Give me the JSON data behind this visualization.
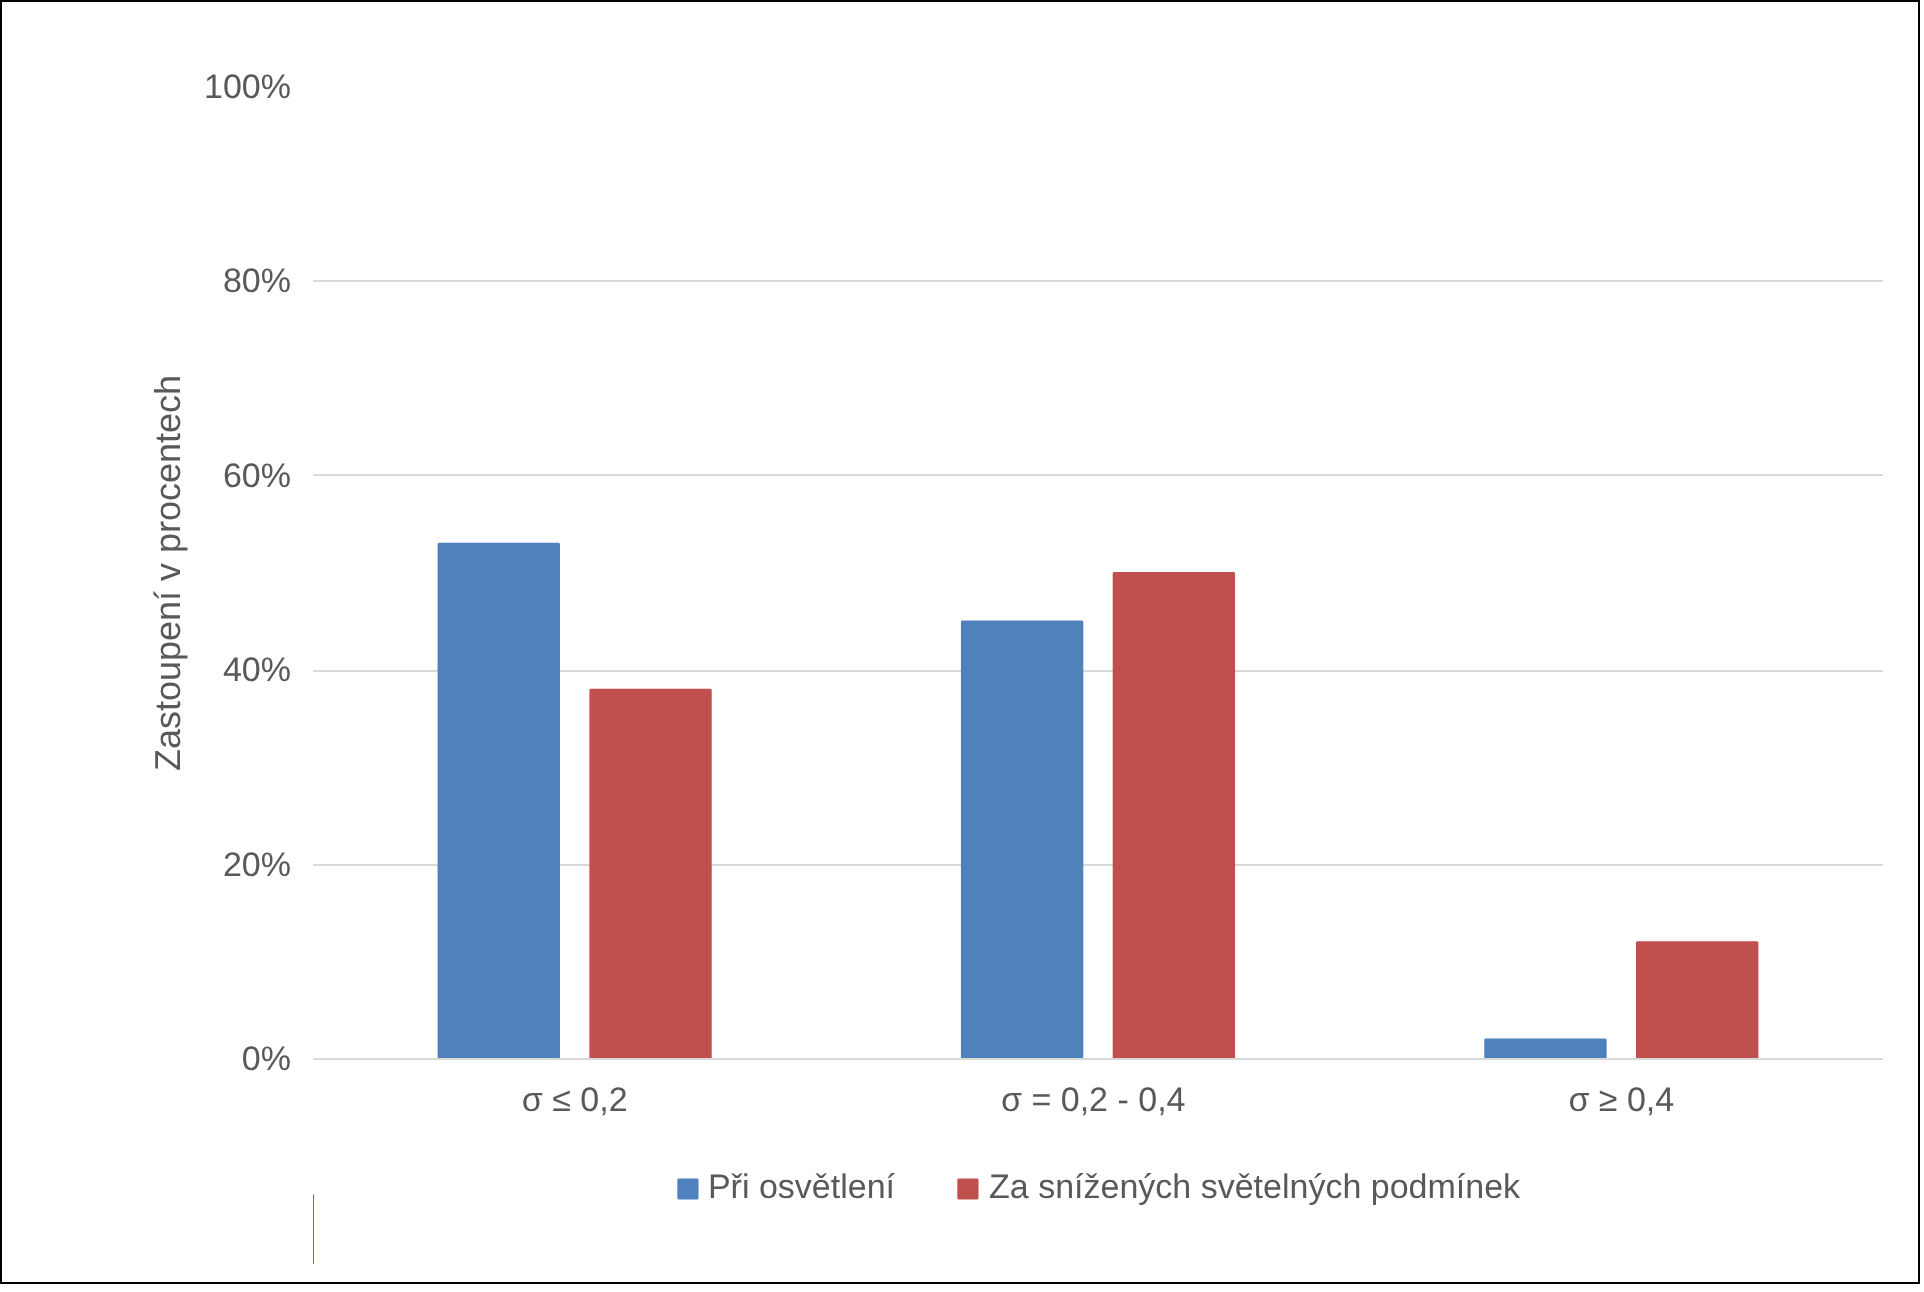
{
  "chart_data": {
    "type": "bar",
    "ylabel": "Zastoupení v procentech",
    "categories": [
      "σ ≤ 0,2",
      "σ = 0,2 -  0,4",
      "σ ≥ 0,4"
    ],
    "series": [
      {
        "name": "Při osvětlení",
        "color": "#4f81bd",
        "values": [
          53,
          45,
          2
        ]
      },
      {
        "name": "Za snížených světelných podmínek",
        "color": "#c0504d",
        "values": [
          38,
          50,
          12
        ]
      }
    ],
    "ylim": [
      0,
      100
    ],
    "yticks": [
      {
        "value": 0,
        "label": "0%"
      },
      {
        "value": 20,
        "label": "20%"
      },
      {
        "value": 40,
        "label": "40%"
      },
      {
        "value": 60,
        "label": "60%"
      },
      {
        "value": 80,
        "label": "80%"
      },
      {
        "value": 100,
        "label": "100%"
      }
    ],
    "grid": "y",
    "legend": "bottom"
  }
}
